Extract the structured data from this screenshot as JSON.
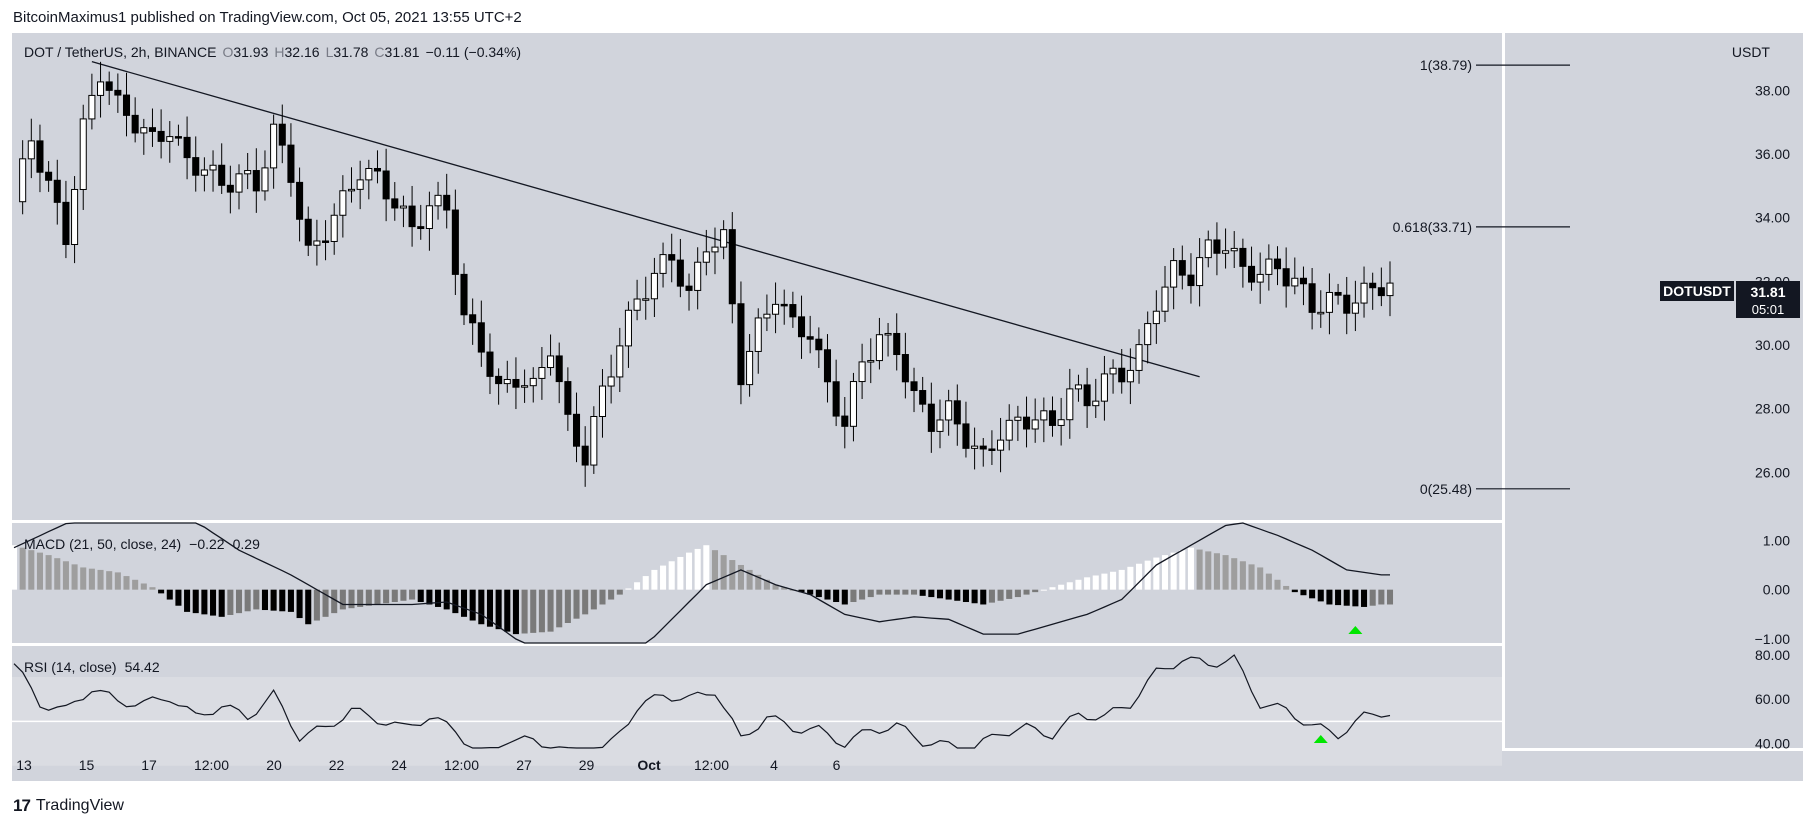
{
  "header": {
    "publisher_text": "BitcoinMaximus1 published on TradingView.com, Oct 05, 2021 13:55 UTC+2"
  },
  "footer": {
    "brand": "TradingView"
  },
  "colors": {
    "pane_bg": "#d1d4dc",
    "up_candle": "#ffffff",
    "down_candle": "#000000",
    "signal_arrow": "#00e600"
  },
  "chart_data": {
    "type": "candlestick",
    "symbol_line": {
      "symbol": "DOT / TetherUS, 2h, BINANCE",
      "o_label": "O",
      "o_value": "31.93",
      "h_label": "H",
      "h_value": "32.16",
      "l_label": "L",
      "l_value": "31.78",
      "c_label": "C",
      "c_value": "31.81",
      "change": "−0.11 (−0.34%)"
    },
    "currency_label": "USDT",
    "price_axis_ticks": [
      "38.00",
      "36.00",
      "34.00",
      "32.00",
      "30.00",
      "28.00",
      "26.00"
    ],
    "price_range": [
      24.5,
      39.8
    ],
    "time_axis_ticks": [
      "13",
      "15",
      "17",
      "12:00",
      "20",
      "22",
      "24",
      "12:00",
      "27",
      "29",
      "Oct",
      "12:00",
      "4",
      "6"
    ],
    "last_price_tag": {
      "symbol": "DOTUSDT",
      "price": "31.81",
      "countdown": "05:01"
    },
    "fib_levels": [
      {
        "label": "1(38.79)",
        "value": 38.79
      },
      {
        "label": "0.618(33.71)",
        "value": 33.71
      },
      {
        "label": "0(25.48)",
        "value": 25.48
      }
    ],
    "trendline": {
      "start_index": 9,
      "start_price": 38.9,
      "end_index": 137,
      "end_price": 29.0
    },
    "price_series": [
      {
        "x": 0,
        "y": 34.5
      },
      {
        "x": 2,
        "y": 36.5
      },
      {
        "x": 4,
        "y": 35.0
      },
      {
        "x": 6,
        "y": 33.4
      },
      {
        "x": 8,
        "y": 36.8
      },
      {
        "x": 10,
        "y": 38.6
      },
      {
        "x": 12,
        "y": 37.5
      },
      {
        "x": 14,
        "y": 37.0
      },
      {
        "x": 16,
        "y": 36.4
      },
      {
        "x": 18,
        "y": 36.8
      },
      {
        "x": 20,
        "y": 35.7
      },
      {
        "x": 22,
        "y": 35.6
      },
      {
        "x": 24,
        "y": 35.0
      },
      {
        "x": 26,
        "y": 35.3
      },
      {
        "x": 28,
        "y": 35.0
      },
      {
        "x": 30,
        "y": 36.7
      },
      {
        "x": 32,
        "y": 35.4
      },
      {
        "x": 34,
        "y": 32.8
      },
      {
        "x": 36,
        "y": 33.6
      },
      {
        "x": 38,
        "y": 34.5
      },
      {
        "x": 40,
        "y": 35.5
      },
      {
        "x": 42,
        "y": 35.2
      },
      {
        "x": 44,
        "y": 34.5
      },
      {
        "x": 46,
        "y": 33.6
      },
      {
        "x": 48,
        "y": 34.4
      },
      {
        "x": 50,
        "y": 34.3
      },
      {
        "x": 52,
        "y": 30.8
      },
      {
        "x": 54,
        "y": 30.0
      },
      {
        "x": 56,
        "y": 28.5
      },
      {
        "x": 58,
        "y": 29.0
      },
      {
        "x": 60,
        "y": 28.6
      },
      {
        "x": 62,
        "y": 30.0
      },
      {
        "x": 64,
        "y": 27.5
      },
      {
        "x": 66,
        "y": 26.5
      },
      {
        "x": 68,
        "y": 28.5
      },
      {
        "x": 70,
        "y": 30.1
      },
      {
        "x": 72,
        "y": 31.4
      },
      {
        "x": 74,
        "y": 32.2
      },
      {
        "x": 76,
        "y": 32.8
      },
      {
        "x": 78,
        "y": 31.5
      },
      {
        "x": 80,
        "y": 33.2
      },
      {
        "x": 82,
        "y": 33.3
      },
      {
        "x": 84,
        "y": 29.1
      },
      {
        "x": 86,
        "y": 30.5
      },
      {
        "x": 88,
        "y": 31.6
      },
      {
        "x": 90,
        "y": 30.6
      },
      {
        "x": 92,
        "y": 30.4
      },
      {
        "x": 94,
        "y": 28.7
      },
      {
        "x": 96,
        "y": 27.5
      },
      {
        "x": 98,
        "y": 29.5
      },
      {
        "x": 100,
        "y": 30.2
      },
      {
        "x": 102,
        "y": 29.9
      },
      {
        "x": 104,
        "y": 28.3
      },
      {
        "x": 106,
        "y": 27.6
      },
      {
        "x": 108,
        "y": 27.9
      },
      {
        "x": 110,
        "y": 27.1
      },
      {
        "x": 112,
        "y": 26.4
      },
      {
        "x": 114,
        "y": 27.3
      },
      {
        "x": 116,
        "y": 27.5
      },
      {
        "x": 118,
        "y": 27.8
      },
      {
        "x": 120,
        "y": 27.4
      },
      {
        "x": 122,
        "y": 28.6
      },
      {
        "x": 124,
        "y": 28.2
      },
      {
        "x": 126,
        "y": 28.9
      },
      {
        "x": 128,
        "y": 29.1
      },
      {
        "x": 130,
        "y": 29.7
      },
      {
        "x": 132,
        "y": 31.4
      },
      {
        "x": 134,
        "y": 32.3
      },
      {
        "x": 136,
        "y": 32.2
      },
      {
        "x": 138,
        "y": 33.0
      },
      {
        "x": 140,
        "y": 33.2
      },
      {
        "x": 142,
        "y": 32.3
      },
      {
        "x": 144,
        "y": 32.3
      },
      {
        "x": 146,
        "y": 32.4
      },
      {
        "x": 148,
        "y": 32.0
      },
      {
        "x": 150,
        "y": 31.2
      },
      {
        "x": 152,
        "y": 31.4
      },
      {
        "x": 154,
        "y": 31.3
      },
      {
        "x": 156,
        "y": 31.6
      },
      {
        "x": 158,
        "y": 31.9
      }
    ],
    "macd": {
      "label": "MACD (21, 50, close, 24)",
      "values": [
        "−0.22",
        "0.29"
      ],
      "axis_ticks": [
        "1.00",
        "0.00",
        "−1.00"
      ],
      "range": [
        -1.08,
        1.35
      ],
      "macd_line": [
        {
          "x": 0,
          "y": 0.85
        },
        {
          "x": 8,
          "y": 1.5
        },
        {
          "x": 14,
          "y": 1.7
        },
        {
          "x": 20,
          "y": 1.5
        },
        {
          "x": 26,
          "y": 0.8
        },
        {
          "x": 32,
          "y": 0.3
        },
        {
          "x": 38,
          "y": -0.3
        },
        {
          "x": 42,
          "y": -0.3
        },
        {
          "x": 46,
          "y": -0.3
        },
        {
          "x": 50,
          "y": -0.25
        },
        {
          "x": 54,
          "y": -0.5
        },
        {
          "x": 58,
          "y": -1.0
        },
        {
          "x": 62,
          "y": -1.5
        },
        {
          "x": 66,
          "y": -1.8
        },
        {
          "x": 72,
          "y": -1.3
        },
        {
          "x": 76,
          "y": -0.6
        },
        {
          "x": 80,
          "y": 0.1
        },
        {
          "x": 84,
          "y": 0.4
        },
        {
          "x": 88,
          "y": 0.1
        },
        {
          "x": 92,
          "y": -0.1
        },
        {
          "x": 96,
          "y": -0.5
        },
        {
          "x": 100,
          "y": -0.65
        },
        {
          "x": 104,
          "y": -0.55
        },
        {
          "x": 108,
          "y": -0.6
        },
        {
          "x": 112,
          "y": -0.9
        },
        {
          "x": 116,
          "y": -0.9
        },
        {
          "x": 120,
          "y": -0.7
        },
        {
          "x": 124,
          "y": -0.5
        },
        {
          "x": 128,
          "y": -0.2
        },
        {
          "x": 132,
          "y": 0.5
        },
        {
          "x": 136,
          "y": 0.9
        },
        {
          "x": 140,
          "y": 1.3
        },
        {
          "x": 142,
          "y": 1.35
        },
        {
          "x": 146,
          "y": 1.1
        },
        {
          "x": 150,
          "y": 0.8
        },
        {
          "x": 154,
          "y": 0.4
        },
        {
          "x": 158,
          "y": 0.3
        }
      ],
      "histogram": [
        {
          "x": 0,
          "y": 0.9
        },
        {
          "x": 4,
          "y": 0.7
        },
        {
          "x": 8,
          "y": 0.45
        },
        {
          "x": 12,
          "y": 0.35
        },
        {
          "x": 16,
          "y": 0.05
        },
        {
          "x": 20,
          "y": -0.45
        },
        {
          "x": 24,
          "y": -0.55
        },
        {
          "x": 28,
          "y": -0.4
        },
        {
          "x": 32,
          "y": -0.45
        },
        {
          "x": 34,
          "y": -0.7
        },
        {
          "x": 38,
          "y": -0.4
        },
        {
          "x": 42,
          "y": -0.3
        },
        {
          "x": 46,
          "y": -0.2
        },
        {
          "x": 50,
          "y": -0.4
        },
        {
          "x": 54,
          "y": -0.7
        },
        {
          "x": 58,
          "y": -0.9
        },
        {
          "x": 62,
          "y": -0.85
        },
        {
          "x": 66,
          "y": -0.5
        },
        {
          "x": 70,
          "y": -0.1
        },
        {
          "x": 74,
          "y": 0.4
        },
        {
          "x": 78,
          "y": 0.75
        },
        {
          "x": 80,
          "y": 0.9
        },
        {
          "x": 84,
          "y": 0.5
        },
        {
          "x": 88,
          "y": 0.1
        },
        {
          "x": 92,
          "y": -0.1
        },
        {
          "x": 96,
          "y": -0.3
        },
        {
          "x": 100,
          "y": -0.1
        },
        {
          "x": 104,
          "y": -0.1
        },
        {
          "x": 108,
          "y": -0.2
        },
        {
          "x": 112,
          "y": -0.3
        },
        {
          "x": 116,
          "y": -0.15
        },
        {
          "x": 120,
          "y": 0.05
        },
        {
          "x": 124,
          "y": 0.25
        },
        {
          "x": 128,
          "y": 0.4
        },
        {
          "x": 132,
          "y": 0.65
        },
        {
          "x": 136,
          "y": 0.85
        },
        {
          "x": 140,
          "y": 0.7
        },
        {
          "x": 144,
          "y": 0.45
        },
        {
          "x": 148,
          "y": -0.05
        },
        {
          "x": 152,
          "y": -0.3
        },
        {
          "x": 156,
          "y": -0.35
        },
        {
          "x": 158,
          "y": -0.3
        }
      ]
    },
    "rsi": {
      "label": "RSI (14, close)",
      "value": "54.42",
      "axis_ticks": [
        "80.00",
        "60.00",
        "40.00"
      ],
      "range": [
        38,
        84
      ],
      "band": [
        30,
        70
      ],
      "values": [
        {
          "x": 0,
          "y": 76
        },
        {
          "x": 3,
          "y": 58
        },
        {
          "x": 6,
          "y": 55
        },
        {
          "x": 9,
          "y": 65
        },
        {
          "x": 12,
          "y": 59
        },
        {
          "x": 15,
          "y": 58
        },
        {
          "x": 18,
          "y": 61
        },
        {
          "x": 21,
          "y": 52
        },
        {
          "x": 24,
          "y": 57
        },
        {
          "x": 27,
          "y": 52
        },
        {
          "x": 30,
          "y": 62
        },
        {
          "x": 33,
          "y": 43
        },
        {
          "x": 36,
          "y": 47
        },
        {
          "x": 39,
          "y": 55
        },
        {
          "x": 42,
          "y": 51
        },
        {
          "x": 45,
          "y": 47
        },
        {
          "x": 48,
          "y": 52
        },
        {
          "x": 51,
          "y": 46
        },
        {
          "x": 54,
          "y": 34
        },
        {
          "x": 57,
          "y": 42
        },
        {
          "x": 60,
          "y": 41
        },
        {
          "x": 63,
          "y": 38
        },
        {
          "x": 66,
          "y": 32
        },
        {
          "x": 69,
          "y": 40
        },
        {
          "x": 72,
          "y": 56
        },
        {
          "x": 75,
          "y": 62
        },
        {
          "x": 78,
          "y": 60
        },
        {
          "x": 81,
          "y": 64
        },
        {
          "x": 84,
          "y": 42
        },
        {
          "x": 87,
          "y": 52
        },
        {
          "x": 90,
          "y": 47
        },
        {
          "x": 93,
          "y": 46
        },
        {
          "x": 96,
          "y": 40
        },
        {
          "x": 99,
          "y": 46
        },
        {
          "x": 102,
          "y": 48
        },
        {
          "x": 105,
          "y": 41
        },
        {
          "x": 108,
          "y": 39
        },
        {
          "x": 111,
          "y": 38
        },
        {
          "x": 114,
          "y": 45
        },
        {
          "x": 117,
          "y": 47
        },
        {
          "x": 120,
          "y": 44
        },
        {
          "x": 123,
          "y": 53
        },
        {
          "x": 126,
          "y": 52
        },
        {
          "x": 129,
          "y": 58
        },
        {
          "x": 132,
          "y": 72
        },
        {
          "x": 135,
          "y": 78
        },
        {
          "x": 138,
          "y": 76
        },
        {
          "x": 141,
          "y": 78
        },
        {
          "x": 144,
          "y": 58
        },
        {
          "x": 147,
          "y": 55
        },
        {
          "x": 150,
          "y": 48
        },
        {
          "x": 153,
          "y": 44
        },
        {
          "x": 156,
          "y": 52
        },
        {
          "x": 158,
          "y": 54
        }
      ]
    }
  }
}
